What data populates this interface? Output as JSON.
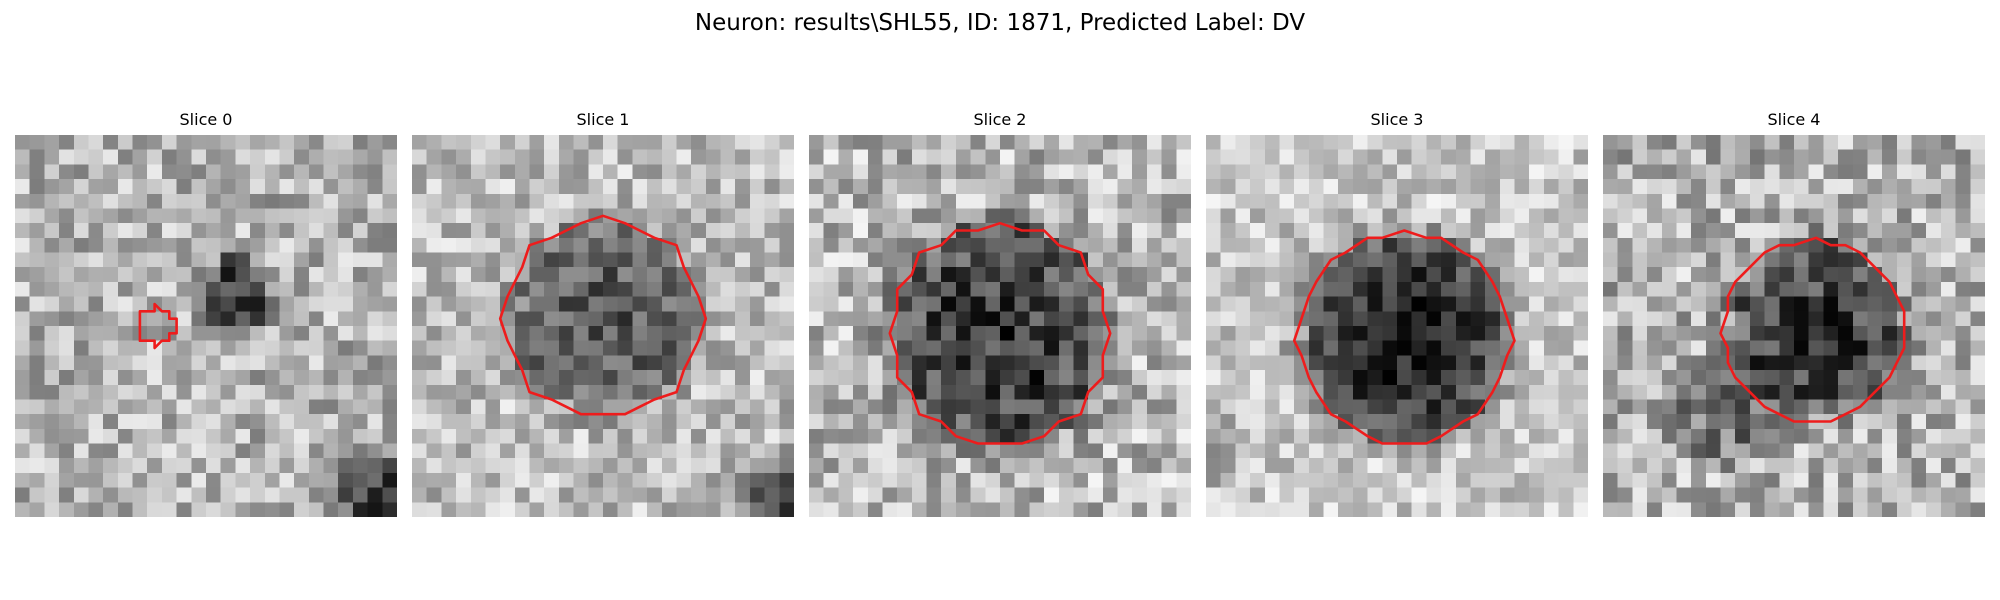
{
  "figure": {
    "title": "Neuron: results\\SHL55, ID: 1871, Predicted Label: DV",
    "contour_color": "#ee1c1c",
    "colormap": "gray"
  },
  "slices": [
    {
      "title": "Slice 0",
      "image_description": "noisy grayscale 2-photon crop, small dark blob upper-middle, dark corner bottom-right",
      "contour_center": [
        0.37,
        0.5
      ],
      "contour_radius": 0.05
    },
    {
      "title": "Slice 1",
      "image_description": "grayscale crop with darker neuron soma in center, dark corner bottom-right",
      "contour_center": [
        0.5,
        0.48
      ],
      "contour_radius": 0.26
    },
    {
      "title": "Slice 2",
      "image_description": "grayscale crop with large dark textured soma in center",
      "contour_center": [
        0.5,
        0.52
      ],
      "contour_radius": 0.29
    },
    {
      "title": "Slice 3",
      "image_description": "grayscale crop with very dark soma in center, bright background",
      "contour_center": [
        0.52,
        0.53
      ],
      "contour_radius": 0.28
    },
    {
      "title": "Slice 4",
      "image_description": "grayscale crop with dark soma center, dark streak lower-left",
      "contour_center": [
        0.55,
        0.51
      ],
      "contour_radius": 0.24
    }
  ]
}
